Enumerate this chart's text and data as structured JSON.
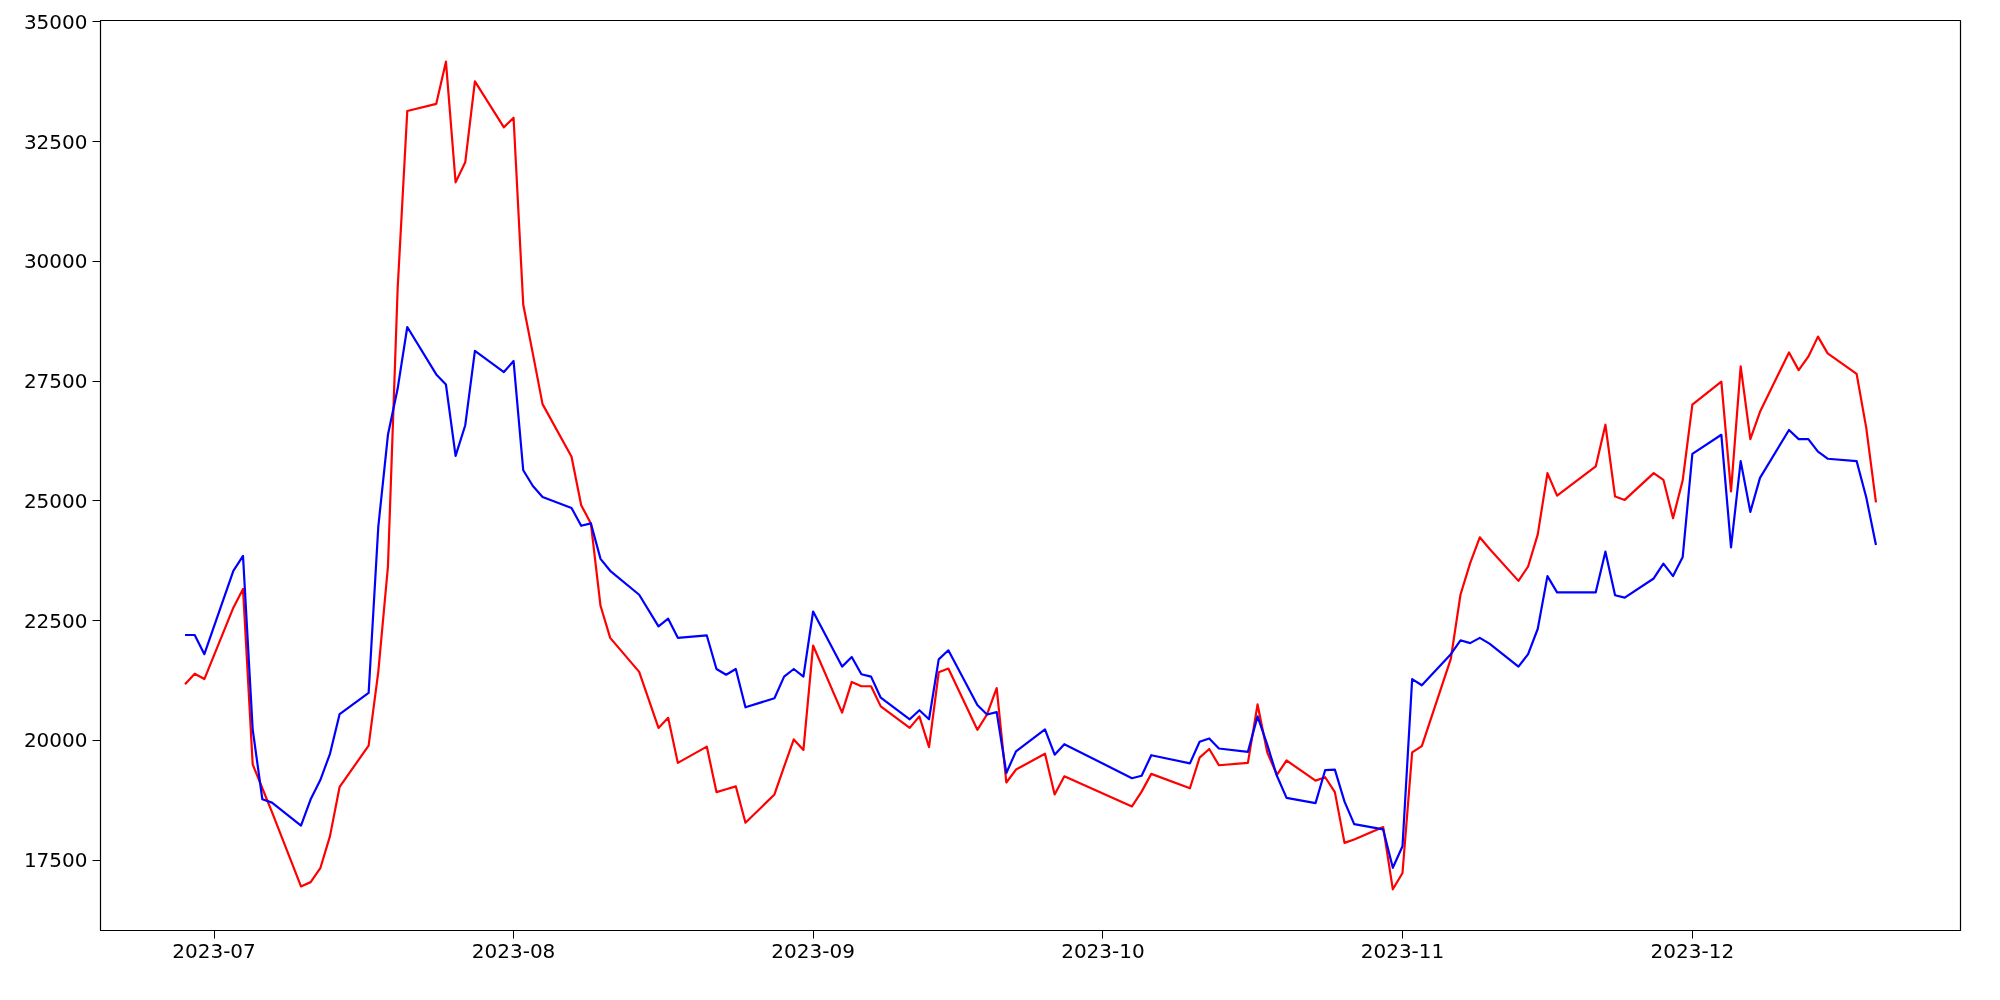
{
  "chart_data": {
    "type": "line",
    "x": [
      "2023-06-28",
      "2023-06-29",
      "2023-06-30",
      "2023-07-03",
      "2023-07-04",
      "2023-07-05",
      "2023-07-06",
      "2023-07-07",
      "2023-07-10",
      "2023-07-11",
      "2023-07-12",
      "2023-07-13",
      "2023-07-14",
      "2023-07-17",
      "2023-07-18",
      "2023-07-19",
      "2023-07-20",
      "2023-07-21",
      "2023-07-24",
      "2023-07-25",
      "2023-07-26",
      "2023-07-27",
      "2023-07-28",
      "2023-07-31",
      "2023-08-01",
      "2023-08-02",
      "2023-08-03",
      "2023-08-04",
      "2023-08-07",
      "2023-08-08",
      "2023-08-09",
      "2023-08-10",
      "2023-08-11",
      "2023-08-14",
      "2023-08-16",
      "2023-08-17",
      "2023-08-18",
      "2023-08-21",
      "2023-08-22",
      "2023-08-23",
      "2023-08-24",
      "2023-08-25",
      "2023-08-28",
      "2023-08-29",
      "2023-08-30",
      "2023-08-31",
      "2023-09-01",
      "2023-09-04",
      "2023-09-05",
      "2023-09-06",
      "2023-09-07",
      "2023-09-08",
      "2023-09-11",
      "2023-09-12",
      "2023-09-13",
      "2023-09-14",
      "2023-09-15",
      "2023-09-18",
      "2023-09-19",
      "2023-09-20",
      "2023-09-21",
      "2023-09-22",
      "2023-09-25",
      "2023-09-26",
      "2023-09-27",
      "2023-10-04",
      "2023-10-05",
      "2023-10-06",
      "2023-10-10",
      "2023-10-11",
      "2023-10-12",
      "2023-10-13",
      "2023-10-16",
      "2023-10-17",
      "2023-10-18",
      "2023-10-19",
      "2023-10-20",
      "2023-10-23",
      "2023-10-24",
      "2023-10-25",
      "2023-10-26",
      "2023-10-27",
      "2023-10-30",
      "2023-10-31",
      "2023-11-01",
      "2023-11-02",
      "2023-11-03",
      "2023-11-06",
      "2023-11-07",
      "2023-11-08",
      "2023-11-09",
      "2023-11-10",
      "2023-11-13",
      "2023-11-14",
      "2023-11-15",
      "2023-11-16",
      "2023-11-17",
      "2023-11-21",
      "2023-11-22",
      "2023-11-23",
      "2023-11-24",
      "2023-11-27",
      "2023-11-28",
      "2023-11-29",
      "2023-11-30",
      "2023-12-01",
      "2023-12-04",
      "2023-12-05",
      "2023-12-06",
      "2023-12-07",
      "2023-12-08",
      "2023-12-11",
      "2023-12-12",
      "2023-12-13",
      "2023-12-14",
      "2023-12-15",
      "2023-12-18",
      "2023-12-19",
      "2023-12-20"
    ],
    "series": [
      {
        "color": "#ff0000",
        "values": [
          21170,
          21390,
          21280,
          22770,
          23160,
          19500,
          19000,
          18500,
          16950,
          17040,
          17330,
          18000,
          19030,
          19890,
          21430,
          23630,
          29420,
          33140,
          33290,
          34170,
          31650,
          32070,
          33760,
          32800,
          33000,
          29100,
          28070,
          27020,
          25920,
          24910,
          24530,
          22810,
          22140,
          21430,
          20260,
          20470,
          19530,
          19870,
          18920,
          18980,
          19040,
          18280,
          18870,
          19450,
          20020,
          19800,
          21980,
          20580,
          21220,
          21130,
          21130,
          20710,
          20260,
          20500,
          19860,
          21420,
          21500,
          20220,
          20540,
          21090,
          19120,
          19390,
          19720,
          18870,
          19250,
          18620,
          18930,
          19300,
          19000,
          19640,
          19820,
          19480,
          19530,
          20750,
          19750,
          19280,
          19580,
          19160,
          19230,
          18920,
          17860,
          17930,
          18190,
          16890,
          17230,
          19750,
          19880,
          21700,
          23040,
          23700,
          24240,
          24000,
          23330,
          23630,
          24300,
          25580,
          25110,
          25720,
          26590,
          25090,
          25020,
          25580,
          25440,
          24640,
          25430,
          27010,
          27490,
          25200,
          27810,
          26290,
          26860,
          28100,
          27730,
          28010,
          28430,
          28080,
          27650,
          26520,
          24970
        ]
      },
      {
        "color": "#0000ff",
        "values": [
          22200,
          22200,
          21800,
          23540,
          23850,
          20230,
          18770,
          18700,
          18220,
          18770,
          19170,
          19720,
          20550,
          20990,
          24460,
          26380,
          27340,
          28630,
          27640,
          27430,
          25940,
          26580,
          28130,
          27690,
          27920,
          25640,
          25310,
          25080,
          24850,
          24480,
          24530,
          23790,
          23540,
          23040,
          22380,
          22540,
          22140,
          22190,
          21490,
          21370,
          21490,
          20690,
          20880,
          21330,
          21490,
          21330,
          22690,
          21540,
          21740,
          21380,
          21330,
          20890,
          20440,
          20630,
          20440,
          21690,
          21880,
          20740,
          20540,
          20590,
          19320,
          19770,
          20230,
          19700,
          19920,
          19210,
          19260,
          19690,
          19520,
          19970,
          20040,
          19830,
          19760,
          20500,
          19910,
          19260,
          18800,
          18690,
          19380,
          19390,
          18720,
          18250,
          18140,
          17340,
          17790,
          21280,
          21150,
          21800,
          22090,
          22030,
          22140,
          22020,
          21540,
          21800,
          22330,
          23430,
          23090,
          23090,
          23940,
          23030,
          22980,
          23380,
          23690,
          23430,
          23830,
          25980,
          26380,
          24030,
          25830,
          24770,
          25480,
          26480,
          26290,
          26290,
          26030,
          25880,
          25830,
          25070,
          24080
        ]
      }
    ],
    "xlim": [
      "2023-06-19T06:00",
      "2023-12-28T18:00"
    ],
    "xticks": [
      {
        "value": "2023-07-01",
        "label": "2023-07"
      },
      {
        "value": "2023-08-01",
        "label": "2023-08"
      },
      {
        "value": "2023-09-01",
        "label": "2023-09"
      },
      {
        "value": "2023-10-01",
        "label": "2023-10"
      },
      {
        "value": "2023-11-01",
        "label": "2023-11"
      },
      {
        "value": "2023-12-01",
        "label": "2023-12"
      }
    ],
    "ylim": [
      16030,
      35030
    ],
    "yticks": [
      17500,
      20000,
      22500,
      25000,
      27500,
      30000,
      32500,
      35000
    ],
    "grid": false,
    "line_style": "solid"
  }
}
